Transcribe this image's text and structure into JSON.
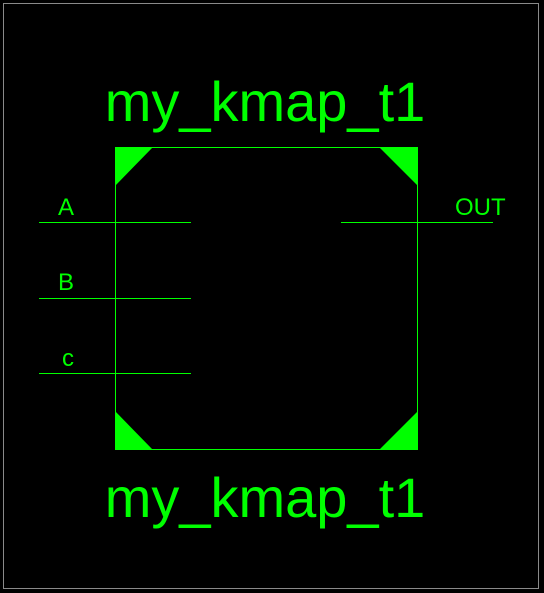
{
  "symbol": {
    "name_top": "my_kmap_t1",
    "name_bottom": "my_kmap_t1",
    "color": "#00ff00",
    "background": "#000000",
    "frame_color": "#8a8a8a"
  },
  "pins": {
    "inputs": [
      {
        "label": "A"
      },
      {
        "label": "B"
      },
      {
        "label": "c"
      }
    ],
    "outputs": [
      {
        "label": "OUT"
      }
    ]
  }
}
